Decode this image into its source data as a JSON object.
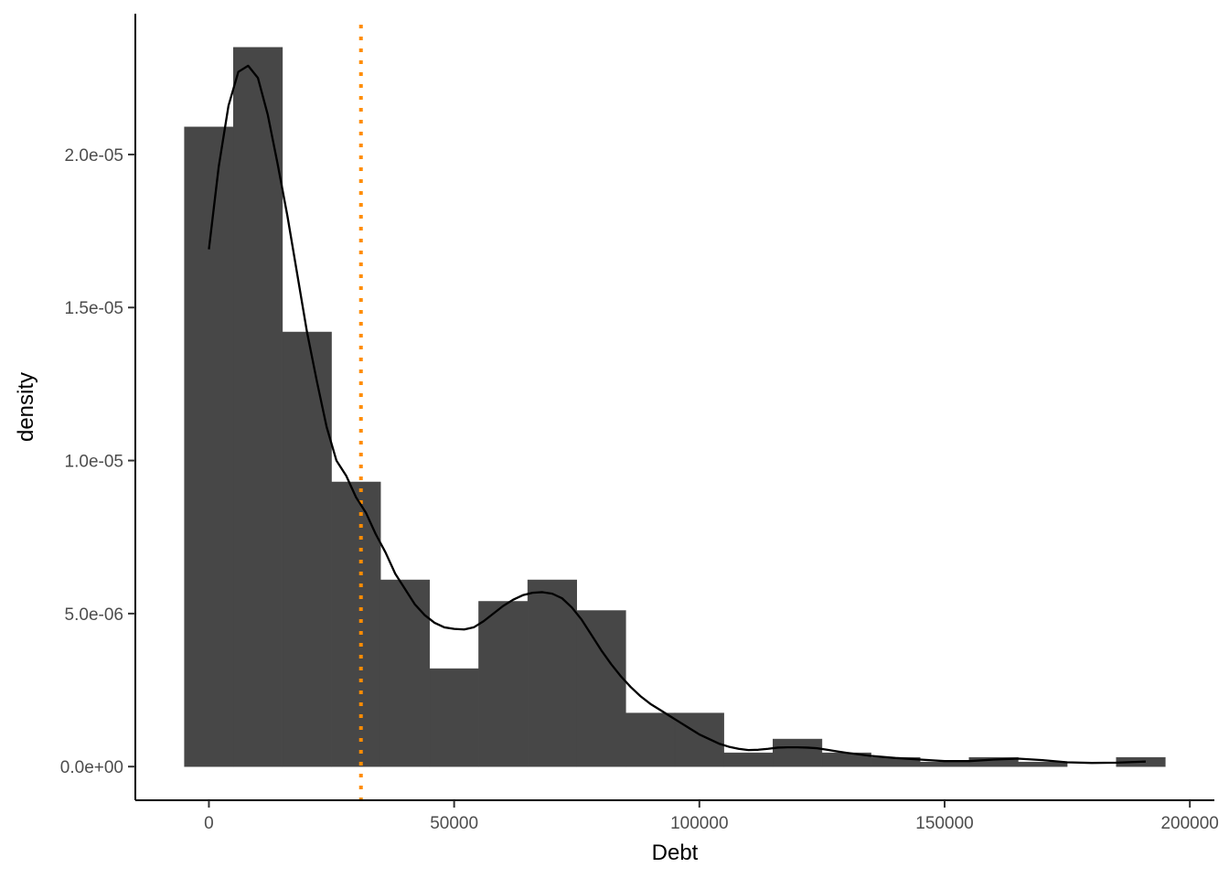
{
  "chart_data": {
    "type": "histogram",
    "xlabel": "Debt",
    "ylabel": "density",
    "xlim": [
      -15000,
      205000
    ],
    "ylim": [
      -1.1e-06,
      2.46e-05
    ],
    "x_ticks": [
      0,
      50000,
      100000,
      150000,
      200000
    ],
    "x_tick_labels": [
      "0",
      "50000",
      "100000",
      "150000",
      "200000"
    ],
    "y_ticks": [
      0,
      5e-06,
      1e-05,
      1.5e-05,
      2e-05
    ],
    "y_tick_labels": [
      "0.0e+00",
      "5.0e-06",
      "1.0e-05",
      "1.5e-05",
      "2.0e-05"
    ],
    "grid": false,
    "histogram": {
      "bin_width": 10000,
      "bins": [
        {
          "start": -5000,
          "end": 5000,
          "density": 2.09e-05
        },
        {
          "start": 5000,
          "end": 15000,
          "density": 2.35e-05
        },
        {
          "start": 15000,
          "end": 25000,
          "density": 1.42e-05
        },
        {
          "start": 25000,
          "end": 35000,
          "density": 9.3e-06
        },
        {
          "start": 35000,
          "end": 45000,
          "density": 6.1e-06
        },
        {
          "start": 45000,
          "end": 55000,
          "density": 3.2e-06
        },
        {
          "start": 55000,
          "end": 65000,
          "density": 5.4e-06
        },
        {
          "start": 65000,
          "end": 75000,
          "density": 6.1e-06
        },
        {
          "start": 75000,
          "end": 85000,
          "density": 5.1e-06
        },
        {
          "start": 85000,
          "end": 95000,
          "density": 1.75e-06
        },
        {
          "start": 95000,
          "end": 105000,
          "density": 1.75e-06
        },
        {
          "start": 105000,
          "end": 115000,
          "density": 4.5e-07
        },
        {
          "start": 115000,
          "end": 125000,
          "density": 9e-07
        },
        {
          "start": 125000,
          "end": 135000,
          "density": 4.5e-07
        },
        {
          "start": 135000,
          "end": 145000,
          "density": 3e-07
        },
        {
          "start": 145000,
          "end": 155000,
          "density": 1.5e-07
        },
        {
          "start": 155000,
          "end": 165000,
          "density": 3e-07
        },
        {
          "start": 165000,
          "end": 175000,
          "density": 1.5e-07
        },
        {
          "start": 175000,
          "end": 185000,
          "density": 0
        },
        {
          "start": 185000,
          "end": 195000,
          "density": 3e-07
        }
      ]
    },
    "density_curve": {
      "x": [
        0,
        2000,
        4000,
        6000,
        8000,
        10000,
        12000,
        14000,
        16000,
        18000,
        20000,
        22000,
        24000,
        26000,
        28000,
        30000,
        32000,
        34000,
        36000,
        38000,
        40000,
        42000,
        44000,
        46000,
        48000,
        50000,
        52000,
        54000,
        56000,
        58000,
        60000,
        62000,
        64000,
        66000,
        68000,
        70000,
        72000,
        74000,
        76000,
        78000,
        80000,
        82000,
        84000,
        86000,
        88000,
        90000,
        92000,
        94000,
        96000,
        98000,
        100000,
        102000,
        104000,
        106000,
        108000,
        110000,
        112000,
        114000,
        116000,
        118000,
        120000,
        122000,
        124000,
        126000,
        128000,
        130000,
        135000,
        140000,
        145000,
        150000,
        155000,
        160000,
        165000,
        170000,
        175000,
        180000,
        185000,
        190000,
        191000
      ],
      "y": [
        1.69e-05,
        1.96e-05,
        2.16e-05,
        2.27e-05,
        2.29e-05,
        2.25e-05,
        2.13e-05,
        1.97e-05,
        1.8e-05,
        1.61e-05,
        1.42e-05,
        1.26e-05,
        1.11e-05,
        1e-05,
        9.5e-06,
        8.8e-06,
        8.3e-06,
        7.6e-06,
        7e-06,
        6.3e-06,
        5.8e-06,
        5.3e-06,
        4.95e-06,
        4.7e-06,
        4.55e-06,
        4.5e-06,
        4.48e-06,
        4.55e-06,
        4.75e-06,
        5e-06,
        5.25e-06,
        5.45e-06,
        5.6e-06,
        5.68e-06,
        5.7e-06,
        5.65e-06,
        5.5e-06,
        5.2e-06,
        4.8e-06,
        4.3e-06,
        3.8e-06,
        3.35e-06,
        2.95e-06,
        2.6e-06,
        2.3e-06,
        2.05e-06,
        1.85e-06,
        1.65e-06,
        1.45e-06,
        1.25e-06,
        1.05e-06,
        9e-07,
        7.5e-07,
        6.5e-07,
        5.8e-07,
        5.4e-07,
        5.5e-07,
        5.8e-07,
        6.2e-07,
        6.3e-07,
        6.3e-07,
        6.2e-07,
        6e-07,
        5.5e-07,
        5e-07,
        4.5e-07,
        3.5e-07,
        2.8e-07,
        2.3e-07,
        1.8e-07,
        1.8e-07,
        2.3e-07,
        2.6e-07,
        2.1e-07,
        1.4e-07,
        1.2e-07,
        1.3e-07,
        1.6e-07,
        1.65e-07
      ]
    },
    "reference_line": {
      "x": 31000,
      "color": "#ff8c00",
      "style": "dotted"
    },
    "colors": {
      "bars": "#474747",
      "curve": "#000000",
      "reference": "#ff8c00",
      "axis": "#000000",
      "tick_labels": "#4d4d4d"
    }
  }
}
